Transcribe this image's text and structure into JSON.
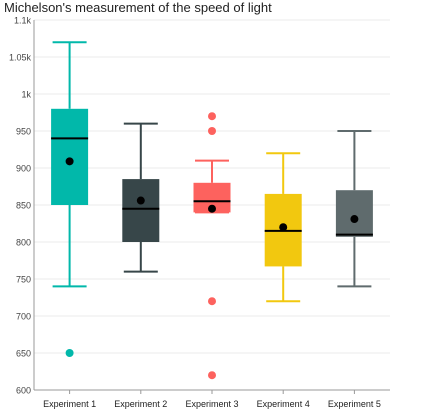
{
  "chart_data": {
    "type": "boxplot",
    "title": "Michelson's measurement of the speed of light",
    "xlabel": "",
    "ylabel": "",
    "ylim": [
      600,
      1100
    ],
    "yticks": [
      {
        "value": 600,
        "label": "600"
      },
      {
        "value": 650,
        "label": "650"
      },
      {
        "value": 700,
        "label": "700"
      },
      {
        "value": 750,
        "label": "750"
      },
      {
        "value": 800,
        "label": "800"
      },
      {
        "value": 850,
        "label": "850"
      },
      {
        "value": 900,
        "label": "900"
      },
      {
        "value": 950,
        "label": "950"
      },
      {
        "value": 1000,
        "label": "1k"
      },
      {
        "value": 1050,
        "label": "1.05k"
      },
      {
        "value": 1100,
        "label": "1.1k"
      }
    ],
    "grid": true,
    "legend": "none",
    "categories": [
      "Experiment 1",
      "Experiment 2",
      "Experiment 3",
      "Experiment 4",
      "Experiment 5"
    ],
    "boxes": [
      {
        "category": "Experiment 1",
        "min": 740,
        "q1": 850,
        "median": 940,
        "q3": 980,
        "max": 1070,
        "mean": 909,
        "outliers": [
          650
        ],
        "color": "#01b8aa"
      },
      {
        "category": "Experiment 2",
        "min": 760,
        "q1": 800,
        "median": 845,
        "q3": 885,
        "max": 960,
        "mean": 856,
        "outliers": [],
        "color": "#374649"
      },
      {
        "category": "Experiment 3",
        "min": 840,
        "q1": 840,
        "median": 855,
        "q3": 880,
        "max": 910,
        "mean": 845,
        "outliers": [
          970,
          950,
          720,
          620
        ],
        "color": "#fd625e"
      },
      {
        "category": "Experiment 4",
        "min": 720,
        "q1": 767,
        "median": 815,
        "q3": 865,
        "max": 920,
        "mean": 820,
        "outliers": [],
        "color": "#f2c80f"
      },
      {
        "category": "Experiment 5",
        "min": 740,
        "q1": 807,
        "median": 810,
        "q3": 870,
        "max": 950,
        "mean": 831,
        "outliers": [],
        "color": "#5f6b6d"
      }
    ]
  }
}
